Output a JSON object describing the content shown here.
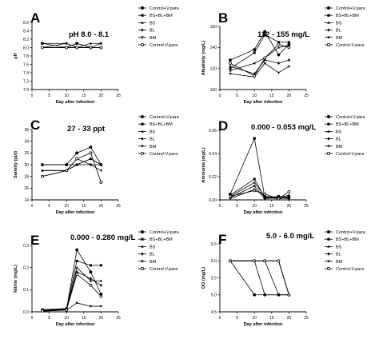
{
  "legend_labels": [
    "Control+V.para",
    "BS+BL+BM",
    "BS",
    "BL",
    "BM",
    "Control-V.para"
  ],
  "chart_data": [
    {
      "type": "line",
      "panel": "A",
      "range_text": "pH 8.0 - 8.1",
      "xlabel": "Day after infection",
      "ylabel": "pH",
      "xlim": [
        0,
        25
      ],
      "ylim": [
        7.0,
        8.6
      ],
      "xticks": [
        0,
        5,
        10,
        15,
        20,
        25
      ],
      "yticks": [
        7.0,
        7.2,
        7.4,
        7.6,
        7.8,
        8.0,
        8.2,
        8.4,
        8.6
      ],
      "ytick_labels": [
        "7.0",
        "7.2",
        "7.4",
        "7.6",
        "7.8",
        "8.0",
        "8.2",
        "8.4",
        "8.6"
      ],
      "x": [
        3,
        10,
        13,
        17,
        20
      ],
      "series": [
        {
          "name": "Control+V.para",
          "values": [
            8.1,
            8.0,
            8.1,
            8.0,
            8.0
          ]
        },
        {
          "name": "BS+BL+BM",
          "values": [
            8.0,
            8.0,
            8.0,
            8.0,
            8.0
          ]
        },
        {
          "name": "BS",
          "values": [
            8.1,
            8.1,
            8.0,
            8.1,
            8.1
          ]
        },
        {
          "name": "BL",
          "values": [
            8.0,
            8.0,
            8.1,
            8.0,
            8.0
          ]
        },
        {
          "name": "BM",
          "values": [
            8.0,
            8.1,
            8.0,
            8.0,
            8.1
          ]
        },
        {
          "name": "Control-V.para",
          "values": [
            8.0,
            8.0,
            8.0,
            8.0,
            8.0
          ]
        }
      ]
    },
    {
      "type": "line",
      "panel": "B",
      "range_text": "112 - 155 mg/L",
      "xlabel": "Day after infection",
      "ylabel": "Alkalinity (mg/L)",
      "xlim": [
        0,
        25
      ],
      "ylim": [
        100,
        160
      ],
      "xticks": [
        0,
        5,
        10,
        15,
        20,
        25
      ],
      "yticks": [
        100,
        120,
        140,
        160
      ],
      "ytick_labels": [
        "100",
        "120",
        "140",
        "160"
      ],
      "x": [
        3,
        10,
        13,
        17,
        20
      ],
      "series": [
        {
          "name": "Control+V.para",
          "values": [
            128,
            138,
            155,
            133,
            143
          ]
        },
        {
          "name": "BS+BL+BM",
          "values": [
            120,
            135,
            152,
            145,
            145
          ]
        },
        {
          "name": "BS",
          "values": [
            118,
            125,
            130,
            140,
            142
          ]
        },
        {
          "name": "BL",
          "values": [
            122,
            115,
            128,
            125,
            128
          ]
        },
        {
          "name": "BM",
          "values": [
            115,
            112,
            125,
            116,
            122
          ]
        },
        {
          "name": "Control-V.para",
          "values": [
            125,
            113,
            130,
            143,
            140
          ]
        }
      ]
    },
    {
      "type": "line",
      "panel": "C",
      "range_text": "27 - 33 ppt",
      "xlabel": "Day after infection",
      "ylabel": "Salinity (ppt)",
      "xlim": [
        0,
        25
      ],
      "ylim": [
        24,
        36
      ],
      "xticks": [
        0,
        5,
        10,
        15,
        20,
        25
      ],
      "yticks": [
        24,
        26,
        28,
        30,
        32,
        34,
        36
      ],
      "ytick_labels": [
        "24",
        "26",
        "28",
        "30",
        "32",
        "34",
        "36"
      ],
      "x": [
        3,
        10,
        13,
        17,
        20
      ],
      "series": [
        {
          "name": "Control+V.para",
          "values": [
            30,
            30,
            32,
            33,
            30
          ]
        },
        {
          "name": "BS+BL+BM",
          "values": [
            30,
            30,
            30,
            31,
            30
          ]
        },
        {
          "name": "BS",
          "values": [
            29,
            29,
            30,
            31,
            30
          ]
        },
        {
          "name": "BL",
          "values": [
            29,
            29,
            31,
            30,
            30
          ]
        },
        {
          "name": "BM",
          "values": [
            28,
            29,
            30,
            30,
            29
          ]
        },
        {
          "name": "Control-V.para",
          "values": [
            28,
            29,
            31,
            32,
            27
          ]
        }
      ]
    },
    {
      "type": "line",
      "panel": "D",
      "range_text": "0.000 - 0.053 mg/L",
      "xlabel": "Day after infection",
      "ylabel": "Ammonia (mg/L)",
      "xlim": [
        0,
        25
      ],
      "ylim": [
        0,
        0.06
      ],
      "xticks": [
        0,
        5,
        10,
        15,
        20,
        25
      ],
      "yticks": [
        0,
        0.02,
        0.04,
        0.06
      ],
      "ytick_labels": [
        "0.00",
        "0.02",
        "0.04",
        "0.06"
      ],
      "x": [
        3,
        10,
        13,
        17,
        20
      ],
      "series": [
        {
          "name": "Control+V.para",
          "values": [
            0.005,
            0.053,
            0.002,
            0.003,
            0.002
          ]
        },
        {
          "name": "BS+BL+BM",
          "values": [
            0.004,
            0.018,
            0.002,
            0.001,
            0.003
          ]
        },
        {
          "name": "BS",
          "values": [
            0.003,
            0.015,
            0.003,
            0.002,
            0.004
          ]
        },
        {
          "name": "BL",
          "values": [
            0.002,
            0.012,
            0.001,
            0.002,
            0.001
          ]
        },
        {
          "name": "BM",
          "values": [
            0.001,
            0.009,
            0.003,
            0.001,
            0.002
          ]
        },
        {
          "name": "Control-V.para",
          "values": [
            0.003,
            0.008,
            0.005,
            0.001,
            0.007
          ]
        }
      ]
    },
    {
      "type": "line",
      "panel": "E",
      "range_text": "0.000 - 0.280 mg/L",
      "xlabel": "Day after infection",
      "ylabel": "Nitrite (mg/L)",
      "xlim": [
        0,
        25
      ],
      "ylim": [
        0,
        0.3
      ],
      "xticks": [
        0,
        5,
        10,
        15,
        20,
        25
      ],
      "yticks": [
        0,
        0.1,
        0.2,
        0.3
      ],
      "ytick_labels": [
        "0.0",
        "0.1",
        "0.2",
        "0.3"
      ],
      "x": [
        3,
        10,
        13,
        17,
        20
      ],
      "series": [
        {
          "name": "Control+V.para",
          "values": [
            0.008,
            0.012,
            0.28,
            0.18,
            0.08
          ]
        },
        {
          "name": "BS+BL+BM",
          "values": [
            0.01,
            0.015,
            0.23,
            0.21,
            0.21
          ]
        },
        {
          "name": "BS",
          "values": [
            0.005,
            0.01,
            0.2,
            0.14,
            0.14
          ]
        },
        {
          "name": "BL",
          "values": [
            0.006,
            0.01,
            0.18,
            0.15,
            0.12
          ]
        },
        {
          "name": "BM",
          "values": [
            0.003,
            0.008,
            0.04,
            0.025,
            0.025
          ]
        },
        {
          "name": "Control-V.para",
          "values": [
            0.004,
            0.008,
            0.17,
            0.12,
            0.07
          ]
        }
      ]
    },
    {
      "type": "line",
      "panel": "F",
      "range_text": "5.0 - 6.0 mg/L",
      "xlabel": "Day after infection",
      "ylabel": "DO (mg/L)",
      "xlim": [
        0,
        25
      ],
      "ylim": [
        4.5,
        6.5
      ],
      "xticks": [
        0,
        5,
        10,
        15,
        20,
        25
      ],
      "yticks": [
        4.5,
        5.0,
        5.5,
        6.0,
        6.5
      ],
      "ytick_labels": [
        "4.5",
        "5.0",
        "5.5",
        "6.0",
        "6.5"
      ],
      "x": [
        3,
        10,
        13,
        17,
        20
      ],
      "series": [
        {
          "name": "Control+V.para",
          "values": [
            6.0,
            5.0,
            5.0,
            5.0,
            5.0
          ]
        },
        {
          "name": "BS+BL+BM",
          "values": [
            6.0,
            6.0,
            6.0,
            5.0,
            5.0
          ]
        },
        {
          "name": "BS",
          "values": [
            6.0,
            6.0,
            5.0,
            5.0,
            5.0
          ]
        },
        {
          "name": "BL",
          "values": [
            6.0,
            6.0,
            6.0,
            6.0,
            5.0
          ]
        },
        {
          "name": "BM",
          "values": [
            6.0,
            6.0,
            6.0,
            6.0,
            5.0
          ]
        },
        {
          "name": "Control-V.para",
          "values": [
            6.0,
            6.0,
            6.0,
            6.0,
            5.0
          ]
        }
      ]
    }
  ]
}
